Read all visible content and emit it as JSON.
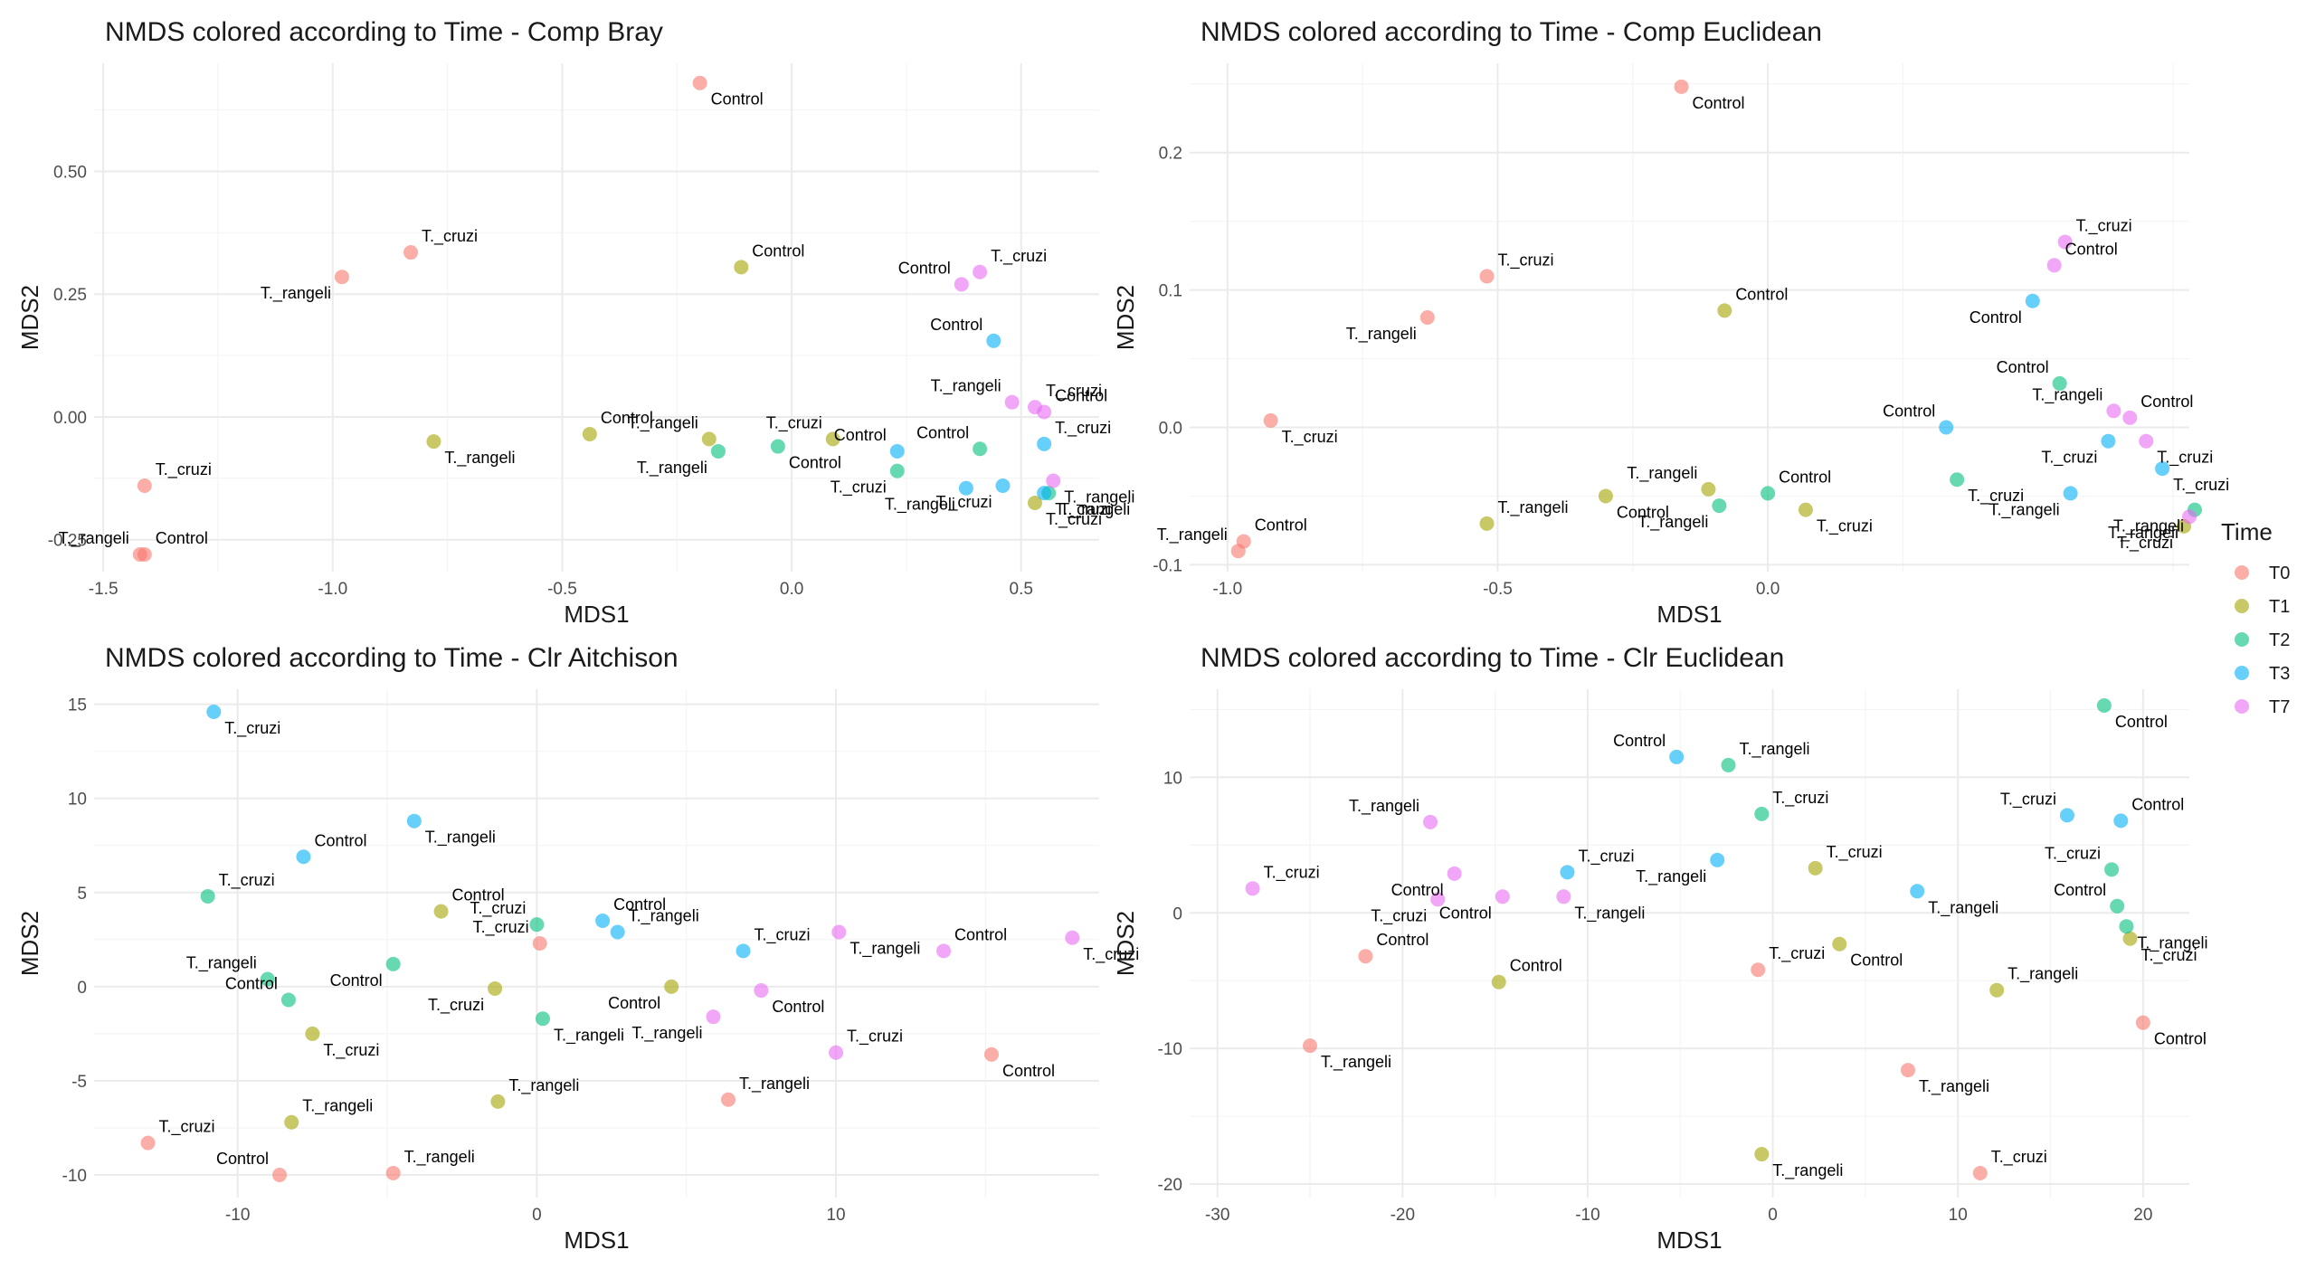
{
  "legend": {
    "title": "Time",
    "entries": [
      {
        "label": "T0",
        "color": "#F8766D"
      },
      {
        "label": "T1",
        "color": "#A3A500"
      },
      {
        "label": "T2",
        "color": "#00BF7D"
      },
      {
        "label": "T3",
        "color": "#00B0F6"
      },
      {
        "label": "T7",
        "color": "#E76BF3"
      }
    ]
  },
  "chart_data": [
    {
      "type": "scatter",
      "title": "NMDS colored according to Time - Comp Bray",
      "xlabel": "MDS1",
      "ylabel": "MDS2",
      "xlim": [
        -1.52,
        0.67
      ],
      "ylim": [
        -0.315,
        0.72
      ],
      "xticks": [
        -1.5,
        -1.0,
        -0.5,
        0.0,
        0.5
      ],
      "xticklabels": [
        "-1.5",
        "-1.0",
        "-0.5",
        "0.0",
        "0.5"
      ],
      "yticks": [
        -0.25,
        0.0,
        0.25,
        0.5
      ],
      "yticklabels": [
        "-0.25",
        "0.00",
        "0.25",
        "0.50"
      ],
      "grid": true,
      "points": [
        {
          "x": -0.2,
          "y": 0.68,
          "time": "T0",
          "label": "Control"
        },
        {
          "x": -0.83,
          "y": 0.335,
          "time": "T0",
          "label": "T._cruzi"
        },
        {
          "x": -0.98,
          "y": 0.285,
          "time": "T0",
          "label": "T._rangeli"
        },
        {
          "x": -1.41,
          "y": -0.14,
          "time": "T0",
          "label": "T._cruzi"
        },
        {
          "x": -1.41,
          "y": -0.28,
          "time": "T0",
          "label": "Control"
        },
        {
          "x": -1.42,
          "y": -0.28,
          "time": "T0",
          "label": "T._rangeli"
        },
        {
          "x": -0.11,
          "y": 0.305,
          "time": "T1",
          "label": "Control"
        },
        {
          "x": -0.78,
          "y": -0.05,
          "time": "T1",
          "label": "T._rangeli"
        },
        {
          "x": -0.44,
          "y": -0.035,
          "time": "T1",
          "label": "Control"
        },
        {
          "x": -0.18,
          "y": -0.045,
          "time": "T1",
          "label": "T._rangeli"
        },
        {
          "x": 0.09,
          "y": -0.045,
          "time": "T1",
          "label": "T._cruzi"
        },
        {
          "x": 0.53,
          "y": -0.175,
          "time": "T1",
          "label": "T._cruzi"
        },
        {
          "x": -0.16,
          "y": -0.07,
          "time": "T2",
          "label": "T._rangeli"
        },
        {
          "x": -0.03,
          "y": -0.06,
          "time": "T2",
          "label": "Control"
        },
        {
          "x": 0.41,
          "y": -0.065,
          "time": "T2",
          "label": "Control"
        },
        {
          "x": 0.23,
          "y": -0.11,
          "time": "T2",
          "label": "T._cruzi"
        },
        {
          "x": 0.56,
          "y": -0.155,
          "time": "T2",
          "label": "T._rangeli"
        },
        {
          "x": 0.44,
          "y": 0.155,
          "time": "T3",
          "label": "Control"
        },
        {
          "x": 0.23,
          "y": -0.07,
          "time": "T3",
          "label": "Control"
        },
        {
          "x": 0.38,
          "y": -0.145,
          "time": "T3",
          "label": "T._rangeli"
        },
        {
          "x": 0.46,
          "y": -0.14,
          "time": "T3",
          "label": "T._cruzi"
        },
        {
          "x": 0.55,
          "y": -0.055,
          "time": "T3",
          "label": "T._cruzi"
        },
        {
          "x": 0.55,
          "y": -0.155,
          "time": "T3",
          "label": "T._cruzi"
        },
        {
          "x": 0.37,
          "y": 0.27,
          "time": "T7",
          "label": "Control"
        },
        {
          "x": 0.41,
          "y": 0.295,
          "time": "T7",
          "label": "T._cruzi"
        },
        {
          "x": 0.48,
          "y": 0.03,
          "time": "T7",
          "label": "T._rangeli"
        },
        {
          "x": 0.53,
          "y": 0.02,
          "time": "T7",
          "label": "T._cruzi"
        },
        {
          "x": 0.55,
          "y": 0.01,
          "time": "T7",
          "label": "Control"
        },
        {
          "x": 0.57,
          "y": -0.13,
          "time": "T7",
          "label": "T._rangeli"
        }
      ]
    },
    {
      "type": "scatter",
      "title": "NMDS colored according to Time - Comp Euclidean",
      "xlabel": "MDS1",
      "ylabel": "MDS2",
      "xlim": [
        -1.07,
        0.78
      ],
      "ylim": [
        -0.105,
        0.265
      ],
      "xticks": [
        -1.0,
        -0.5,
        0.0
      ],
      "xticklabels": [
        "-1.0",
        "-0.5",
        "0.0"
      ],
      "yticks": [
        -0.1,
        0.0,
        0.1,
        0.2
      ],
      "yticklabels": [
        "-0.1",
        "0.0",
        "0.1",
        "0.2"
      ],
      "grid": true,
      "points": [
        {
          "x": -0.16,
          "y": 0.248,
          "time": "T0",
          "label": "Control"
        },
        {
          "x": -0.52,
          "y": 0.11,
          "time": "T0",
          "label": "T._cruzi"
        },
        {
          "x": -0.63,
          "y": 0.08,
          "time": "T0",
          "label": "T._rangeli"
        },
        {
          "x": -0.92,
          "y": 0.005,
          "time": "T0",
          "label": "T._cruzi"
        },
        {
          "x": -0.97,
          "y": -0.083,
          "time": "T0",
          "label": "Control"
        },
        {
          "x": -0.98,
          "y": -0.09,
          "time": "T0",
          "label": "T._rangeli"
        },
        {
          "x": -0.08,
          "y": 0.085,
          "time": "T1",
          "label": "Control"
        },
        {
          "x": -0.3,
          "y": -0.05,
          "time": "T1",
          "label": "Control"
        },
        {
          "x": -0.52,
          "y": -0.07,
          "time": "T1",
          "label": "T._rangeli"
        },
        {
          "x": -0.11,
          "y": -0.045,
          "time": "T1",
          "label": "T._rangeli"
        },
        {
          "x": 0.07,
          "y": -0.06,
          "time": "T1",
          "label": "T._cruzi"
        },
        {
          "x": 0.77,
          "y": -0.072,
          "time": "T1",
          "label": "T._cruzi"
        },
        {
          "x": 0.54,
          "y": 0.032,
          "time": "T2",
          "label": "Control"
        },
        {
          "x": 0.0,
          "y": -0.048,
          "time": "T2",
          "label": "Control"
        },
        {
          "x": -0.09,
          "y": -0.057,
          "time": "T2",
          "label": "T._rangeli"
        },
        {
          "x": 0.35,
          "y": -0.038,
          "time": "T2",
          "label": "T._cruzi"
        },
        {
          "x": 0.79,
          "y": -0.06,
          "time": "T2",
          "label": "T._rangeli"
        },
        {
          "x": 0.49,
          "y": 0.092,
          "time": "T3",
          "label": "Control"
        },
        {
          "x": 0.33,
          "y": 0.0,
          "time": "T3",
          "label": "Control"
        },
        {
          "x": 0.63,
          "y": -0.01,
          "time": "T3",
          "label": "T._cruzi"
        },
        {
          "x": 0.56,
          "y": -0.048,
          "time": "T3",
          "label": "T._rangeli"
        },
        {
          "x": 0.73,
          "y": -0.03,
          "time": "T3",
          "label": "T._cruzi"
        },
        {
          "x": 0.53,
          "y": 0.118,
          "time": "T7",
          "label": "Control"
        },
        {
          "x": 0.55,
          "y": 0.135,
          "time": "T7",
          "label": "T._cruzi"
        },
        {
          "x": 0.64,
          "y": 0.012,
          "time": "T7",
          "label": "T._rangeli"
        },
        {
          "x": 0.67,
          "y": 0.007,
          "time": "T7",
          "label": "Control"
        },
        {
          "x": 0.7,
          "y": -0.01,
          "time": "T7",
          "label": "T._cruzi"
        },
        {
          "x": 0.78,
          "y": -0.065,
          "time": "T7",
          "label": "T._rangeli"
        }
      ]
    },
    {
      "type": "scatter",
      "title": "NMDS colored according to Time - Clr Aitchison",
      "xlabel": "MDS1",
      "ylabel": "MDS2",
      "xlim": [
        -14.8,
        18.8
      ],
      "ylim": [
        -11.2,
        15.8
      ],
      "xticks": [
        -10,
        0,
        10
      ],
      "xticklabels": [
        "-10",
        "0",
        "10"
      ],
      "yticks": [
        -10,
        -5,
        0,
        5,
        10,
        15
      ],
      "yticklabels": [
        "-10",
        "-5",
        "0",
        "5",
        "10",
        "15"
      ],
      "grid": true,
      "points": [
        {
          "x": -13,
          "y": -8.3,
          "time": "T0",
          "label": "T._cruzi"
        },
        {
          "x": -8.6,
          "y": -10,
          "time": "T0",
          "label": "Control"
        },
        {
          "x": -4.8,
          "y": -9.9,
          "time": "T0",
          "label": "T._rangeli"
        },
        {
          "x": 0.1,
          "y": 2.3,
          "time": "T0",
          "label": "T._cruzi"
        },
        {
          "x": 6.4,
          "y": -6,
          "time": "T0",
          "label": "T._rangeli"
        },
        {
          "x": 15.2,
          "y": -3.6,
          "time": "T0",
          "label": "Control"
        },
        {
          "x": -3.2,
          "y": 4,
          "time": "T1",
          "label": "Control"
        },
        {
          "x": -7.5,
          "y": -2.5,
          "time": "T1",
          "label": "T._cruzi"
        },
        {
          "x": -8.2,
          "y": -7.2,
          "time": "T1",
          "label": "T._rangeli"
        },
        {
          "x": -1.4,
          "y": -0.1,
          "time": "T1",
          "label": "T._cruzi"
        },
        {
          "x": -1.3,
          "y": -6.1,
          "time": "T1",
          "label": "T._rangeli"
        },
        {
          "x": 4.5,
          "y": 0,
          "time": "T1",
          "label": "Control"
        },
        {
          "x": -11,
          "y": 4.8,
          "time": "T2",
          "label": "T._cruzi"
        },
        {
          "x": -9,
          "y": 0.4,
          "time": "T2",
          "label": "T._rangeli"
        },
        {
          "x": -8.3,
          "y": -0.7,
          "time": "T2",
          "label": "Control"
        },
        {
          "x": -4.8,
          "y": 1.2,
          "time": "T2",
          "label": "Control"
        },
        {
          "x": 0.0,
          "y": 3.3,
          "time": "T2",
          "label": "T._cruzi"
        },
        {
          "x": 0.2,
          "y": -1.7,
          "time": "T2",
          "label": "T._rangeli"
        },
        {
          "x": -10.8,
          "y": 14.6,
          "time": "T3",
          "label": "T._cruzi"
        },
        {
          "x": -4.1,
          "y": 8.8,
          "time": "T3",
          "label": "T._rangeli"
        },
        {
          "x": -7.8,
          "y": 6.9,
          "time": "T3",
          "label": "Control"
        },
        {
          "x": 2.2,
          "y": 3.5,
          "time": "T3",
          "label": "Control"
        },
        {
          "x": 2.7,
          "y": 2.9,
          "time": "T3",
          "label": "T._rangeli"
        },
        {
          "x": 6.9,
          "y": 1.9,
          "time": "T3",
          "label": "T._cruzi"
        },
        {
          "x": 5.9,
          "y": -1.6,
          "time": "T7",
          "label": "T._rangeli"
        },
        {
          "x": 7.5,
          "y": -0.2,
          "time": "T7",
          "label": "Control"
        },
        {
          "x": 10.0,
          "y": -3.5,
          "time": "T7",
          "label": "T._cruzi"
        },
        {
          "x": 10.1,
          "y": 2.9,
          "time": "T7",
          "label": "T._rangeli"
        },
        {
          "x": 13.6,
          "y": 1.9,
          "time": "T7",
          "label": "Control"
        },
        {
          "x": 17.9,
          "y": 2.6,
          "time": "T7",
          "label": "T._cruzi"
        }
      ]
    },
    {
      "type": "scatter",
      "title": "NMDS colored according to Time - Clr Euclidean",
      "xlabel": "MDS1",
      "ylabel": "MDS2",
      "xlim": [
        -31.5,
        22.5
      ],
      "ylim": [
        -21,
        16.5
      ],
      "xticks": [
        -30,
        -20,
        -10,
        0,
        10,
        20
      ],
      "xticklabels": [
        "-30",
        "-20",
        "-10",
        "0",
        "10",
        "20"
      ],
      "yticks": [
        -20,
        -10,
        0,
        10
      ],
      "yticklabels": [
        "-20",
        "-10",
        "0",
        "10"
      ],
      "grid": true,
      "points": [
        {
          "x": -22,
          "y": -3.2,
          "time": "T0",
          "label": "Control"
        },
        {
          "x": -25,
          "y": -9.8,
          "time": "T0",
          "label": "T._rangeli"
        },
        {
          "x": -0.8,
          "y": -4.2,
          "time": "T0",
          "label": "T._cruzi"
        },
        {
          "x": 7.3,
          "y": -11.6,
          "time": "T0",
          "label": "T._rangeli"
        },
        {
          "x": 11.2,
          "y": -19.2,
          "time": "T0",
          "label": "T._cruzi"
        },
        {
          "x": 20,
          "y": -8.1,
          "time": "T0",
          "label": "Control"
        },
        {
          "x": -14.8,
          "y": -5.1,
          "time": "T1",
          "label": "Control"
        },
        {
          "x": 2.3,
          "y": 3.3,
          "time": "T1",
          "label": "T._cruzi"
        },
        {
          "x": 3.6,
          "y": -2.3,
          "time": "T1",
          "label": "Control"
        },
        {
          "x": -0.6,
          "y": -17.8,
          "time": "T1",
          "label": "T._rangeli"
        },
        {
          "x": 12.1,
          "y": -5.7,
          "time": "T1",
          "label": "T._rangeli"
        },
        {
          "x": 19.3,
          "y": -1.9,
          "time": "T1",
          "label": "T._cruzi"
        },
        {
          "x": -2.4,
          "y": 10.9,
          "time": "T2",
          "label": "T._rangeli"
        },
        {
          "x": -0.6,
          "y": 7.3,
          "time": "T2",
          "label": "T._cruzi"
        },
        {
          "x": 17.9,
          "y": 15.3,
          "time": "T2",
          "label": "Control"
        },
        {
          "x": 18.3,
          "y": 3.2,
          "time": "T2",
          "label": "T._cruzi"
        },
        {
          "x": 18.6,
          "y": 0.5,
          "time": "T2",
          "label": "Control"
        },
        {
          "x": 19.1,
          "y": -1.0,
          "time": "T2",
          "label": "T._rangeli"
        },
        {
          "x": -5.2,
          "y": 11.5,
          "time": "T3",
          "label": "Control"
        },
        {
          "x": -3.0,
          "y": 3.9,
          "time": "T3",
          "label": "T._rangeli"
        },
        {
          "x": -11.1,
          "y": 3.0,
          "time": "T3",
          "label": "T._cruzi"
        },
        {
          "x": 7.8,
          "y": 1.6,
          "time": "T3",
          "label": "T._rangeli"
        },
        {
          "x": 15.9,
          "y": 7.2,
          "time": "T3",
          "label": "T._cruzi"
        },
        {
          "x": 18.8,
          "y": 6.8,
          "time": "T3",
          "label": "Control"
        },
        {
          "x": -28.1,
          "y": 1.8,
          "time": "T7",
          "label": "T._cruzi"
        },
        {
          "x": -18.5,
          "y": 6.7,
          "time": "T7",
          "label": "T._rangeli"
        },
        {
          "x": -17.2,
          "y": 2.9,
          "time": "T7",
          "label": "Control"
        },
        {
          "x": -18.1,
          "y": 1.0,
          "time": "T7",
          "label": "T._cruzi"
        },
        {
          "x": -14.6,
          "y": 1.2,
          "time": "T7",
          "label": "Control"
        },
        {
          "x": -11.3,
          "y": 1.2,
          "time": "T7",
          "label": "T._rangeli"
        }
      ]
    }
  ]
}
